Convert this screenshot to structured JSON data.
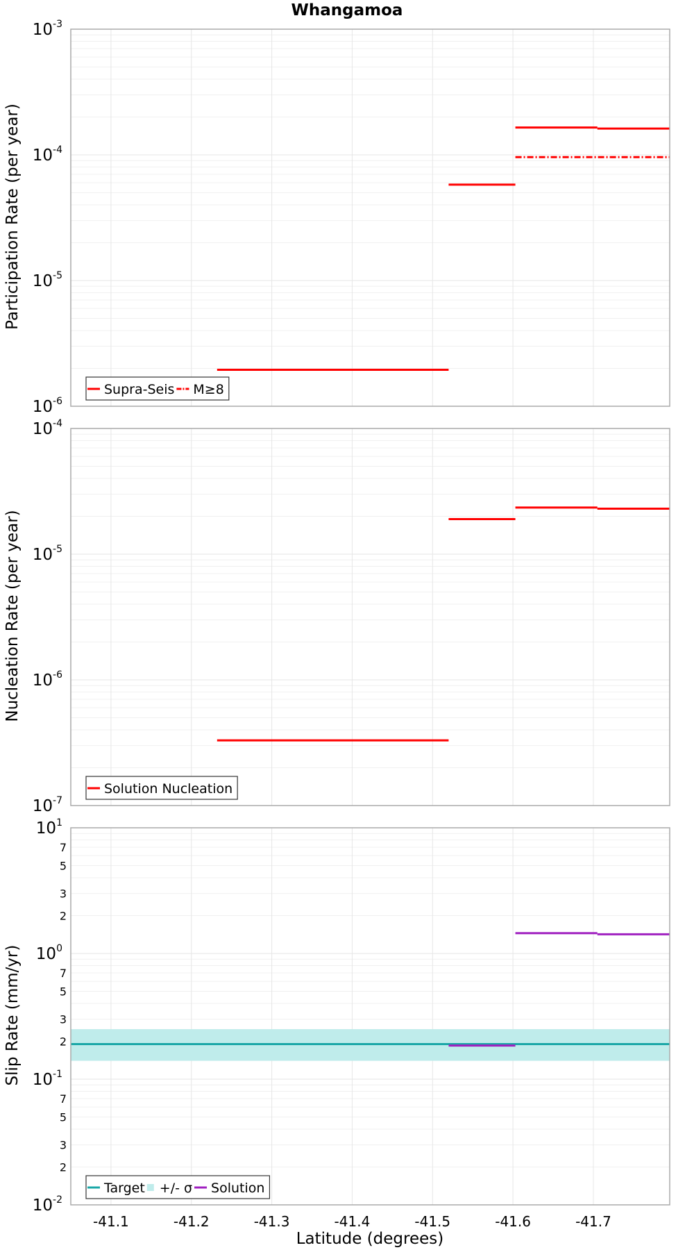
{
  "title": "Whangamoa",
  "colors": {
    "supra_seis": "#ff0000",
    "target": "#1aa7a7",
    "sigma_band": "#bfeceb",
    "solution": "#a020c0",
    "grid": "#e6e6e6",
    "frame": "#aaaaaa"
  },
  "chart_data": [
    {
      "type": "line",
      "panel": "participation",
      "ylabel": "Participation Rate (per year)",
      "yscale": "log",
      "ylim": [
        1e-06,
        0.001
      ],
      "xlim": [
        -41.05,
        -41.795
      ],
      "legend_position": "bottom-left",
      "y_ticks": [
        {
          "base": "10",
          "exp": "-6",
          "value": 1e-06
        },
        {
          "base": "10",
          "exp": "-5",
          "value": 1e-05
        },
        {
          "base": "10",
          "exp": "-4",
          "value": 0.0001
        },
        {
          "base": "10",
          "exp": "-3",
          "value": 0.001
        }
      ],
      "series": [
        {
          "name": "Supra-Seis",
          "style": "solid",
          "segments": [
            {
              "x0": -41.232,
              "x1": -41.52,
              "y": 1.95e-06
            },
            {
              "x0": -41.52,
              "x1": -41.603,
              "y": 5.8e-05
            },
            {
              "x0": -41.603,
              "x1": -41.705,
              "y": 0.000165
            },
            {
              "x0": -41.705,
              "x1": -41.795,
              "y": 0.000162
            }
          ]
        },
        {
          "name": "M≥8",
          "style": "dashdot",
          "segments": [
            {
              "x0": -41.603,
              "x1": -41.795,
              "y": 9.6e-05
            }
          ]
        }
      ]
    },
    {
      "type": "line",
      "panel": "nucleation",
      "ylabel": "Nucleation Rate (per year)",
      "yscale": "log",
      "ylim": [
        1e-07,
        0.0001
      ],
      "xlim": [
        -41.05,
        -41.795
      ],
      "legend_position": "bottom-left",
      "y_ticks": [
        {
          "base": "10",
          "exp": "-7",
          "value": 1e-07
        },
        {
          "base": "10",
          "exp": "-6",
          "value": 1e-06
        },
        {
          "base": "10",
          "exp": "-5",
          "value": 1e-05
        },
        {
          "base": "10",
          "exp": "-4",
          "value": 0.0001
        }
      ],
      "series": [
        {
          "name": "Solution Nucleation",
          "style": "solid",
          "segments": [
            {
              "x0": -41.232,
              "x1": -41.52,
              "y": 3.3e-07
            },
            {
              "x0": -41.52,
              "x1": -41.603,
              "y": 1.9e-05
            },
            {
              "x0": -41.603,
              "x1": -41.705,
              "y": 2.35e-05
            },
            {
              "x0": -41.705,
              "x1": -41.795,
              "y": 2.3e-05
            }
          ]
        }
      ]
    },
    {
      "type": "line",
      "panel": "slip",
      "ylabel": "Slip Rate (mm/yr)",
      "xlabel": "Latitude (degrees)",
      "yscale": "log",
      "ylim": [
        0.01,
        10
      ],
      "xlim": [
        -41.05,
        -41.795
      ],
      "legend_position": "bottom-left",
      "y_ticks": [
        {
          "base": "10",
          "exp": "-2",
          "value": 0.01
        },
        {
          "base": "10",
          "exp": "-1",
          "value": 0.1
        },
        {
          "base": "10",
          "exp": "0",
          "value": 1
        },
        {
          "base": "10",
          "exp": "1",
          "value": 10
        }
      ],
      "y_minor_ticks": [
        {
          "label": "2",
          "value": 0.02
        },
        {
          "label": "3",
          "value": 0.03
        },
        {
          "label": "5",
          "value": 0.05
        },
        {
          "label": "7",
          "value": 0.07
        },
        {
          "label": "2",
          "value": 0.2
        },
        {
          "label": "3",
          "value": 0.3
        },
        {
          "label": "5",
          "value": 0.5
        },
        {
          "label": "7",
          "value": 0.7
        },
        {
          "label": "2",
          "value": 2
        },
        {
          "label": "3",
          "value": 3
        },
        {
          "label": "5",
          "value": 5
        },
        {
          "label": "7",
          "value": 7
        }
      ],
      "x_ticks": [
        {
          "label": "-41.1",
          "value": -41.1
        },
        {
          "label": "-41.2",
          "value": -41.2
        },
        {
          "label": "-41.3",
          "value": -41.3
        },
        {
          "label": "-41.4",
          "value": -41.4
        },
        {
          "label": "-41.5",
          "value": -41.5
        },
        {
          "label": "-41.6",
          "value": -41.6
        },
        {
          "label": "-41.7",
          "value": -41.7
        }
      ],
      "band": {
        "name": "+/- σ",
        "x0": -41.05,
        "x1": -41.795,
        "y_low": 0.14,
        "y_high": 0.25
      },
      "series": [
        {
          "name": "Target",
          "style": "solid",
          "segments": [
            {
              "x0": -41.05,
              "x1": -41.795,
              "y": 0.19
            }
          ]
        },
        {
          "name": "Solution",
          "style": "solid",
          "segments": [
            {
              "x0": -41.52,
              "x1": -41.603,
              "y": 0.185
            },
            {
              "x0": -41.603,
              "x1": -41.705,
              "y": 1.45
            },
            {
              "x0": -41.705,
              "x1": -41.795,
              "y": 1.42
            }
          ]
        }
      ]
    }
  ]
}
